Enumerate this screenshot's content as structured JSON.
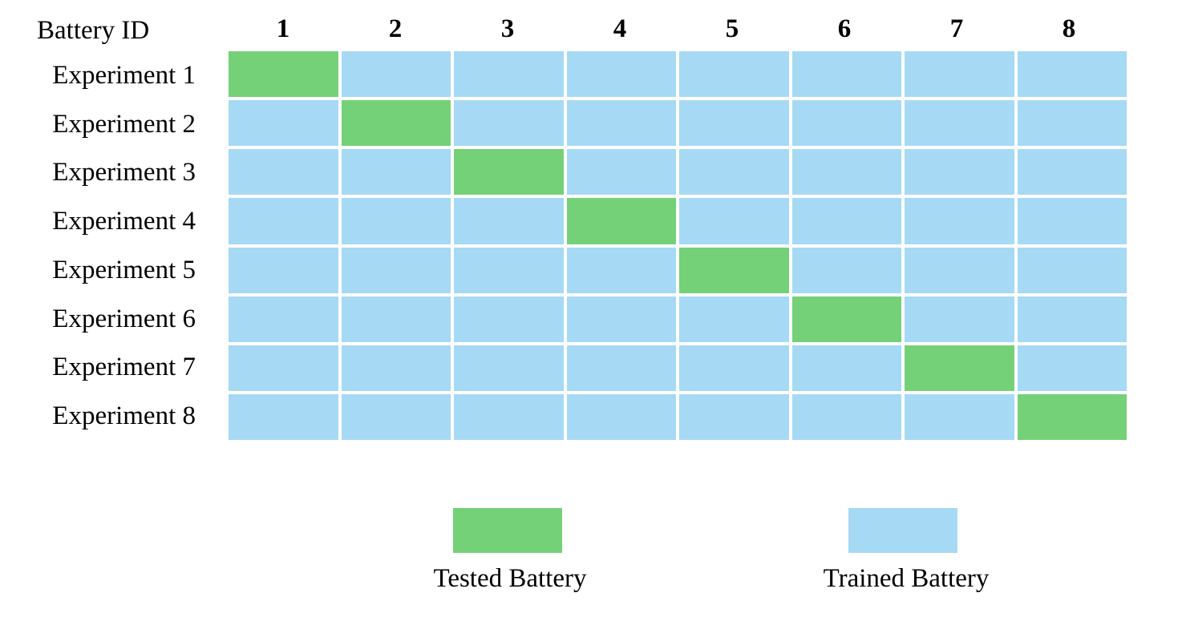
{
  "header_label": "Battery ID",
  "battery_ids": [
    "1",
    "2",
    "3",
    "4",
    "5",
    "6",
    "7",
    "8"
  ],
  "experiments": [
    "Experiment 1",
    "Experiment 2",
    "Experiment 3",
    "Experiment 4",
    "Experiment 5",
    "Experiment 6",
    "Experiment 7",
    "Experiment 8"
  ],
  "tested_battery_per_experiment": [
    1,
    2,
    3,
    4,
    5,
    6,
    7,
    8
  ],
  "colors": {
    "tested": "#75d177",
    "trained": "#a6d9f4",
    "gap": "#ffffff"
  },
  "legend": {
    "tested_label": "Tested Battery",
    "trained_label": "Trained Battery"
  }
}
